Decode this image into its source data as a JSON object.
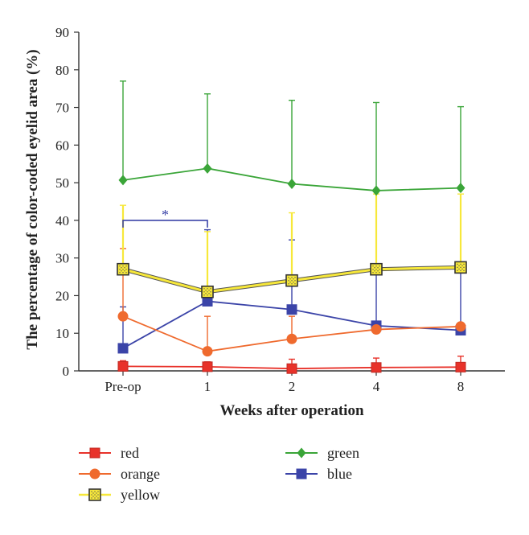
{
  "chart_data": {
    "type": "line",
    "title": "",
    "xlabel": "Weeks after operation",
    "ylabel": "The percentage of color-coded eyelid area (%)",
    "categories": [
      "Pre-op",
      "1",
      "2",
      "4",
      "8"
    ],
    "ylim": [
      0,
      90
    ],
    "yticks": [
      0,
      10,
      20,
      30,
      40,
      50,
      60,
      70,
      80,
      90
    ],
    "grid": false,
    "legend_placement": "bottom",
    "series": [
      {
        "name": "red",
        "color": "#e8322a",
        "marker": "square",
        "values": [
          1.2,
          1.1,
          0.6,
          0.9,
          1.0
        ],
        "error_upper": [
          1.5,
          1.3,
          2.5,
          2.5,
          2.9
        ]
      },
      {
        "name": "orange",
        "color": "#ef6a2e",
        "marker": "circle",
        "values": [
          14.5,
          5.2,
          8.5,
          11.0,
          11.8
        ],
        "error_upper": [
          18.0,
          9.3,
          6.0,
          0,
          0
        ]
      },
      {
        "name": "yellow",
        "color": "#f7e83a",
        "marker": "dotted-square",
        "values": [
          27.0,
          21.0,
          24.0,
          27.0,
          27.5
        ],
        "error_upper": [
          17.0,
          16.0,
          18.0,
          20.0,
          19.5
        ]
      },
      {
        "name": "green",
        "color": "#3aa538",
        "marker": "diamond",
        "values": [
          50.7,
          53.8,
          49.7,
          47.9,
          48.6
        ],
        "error_upper": [
          26.3,
          19.8,
          22.2,
          23.4,
          21.6
        ]
      },
      {
        "name": "blue",
        "color": "#3b44a8",
        "marker": "square",
        "values": [
          6.0,
          18.5,
          16.3,
          12.0,
          10.8
        ],
        "error_upper": [
          11.0,
          19.0,
          18.5,
          15.0,
          16.0
        ]
      }
    ],
    "annotations": [
      {
        "text": "*",
        "from_category": "Pre-op",
        "to_category": "1",
        "y": 40,
        "color": "#3b44a8"
      }
    ]
  }
}
